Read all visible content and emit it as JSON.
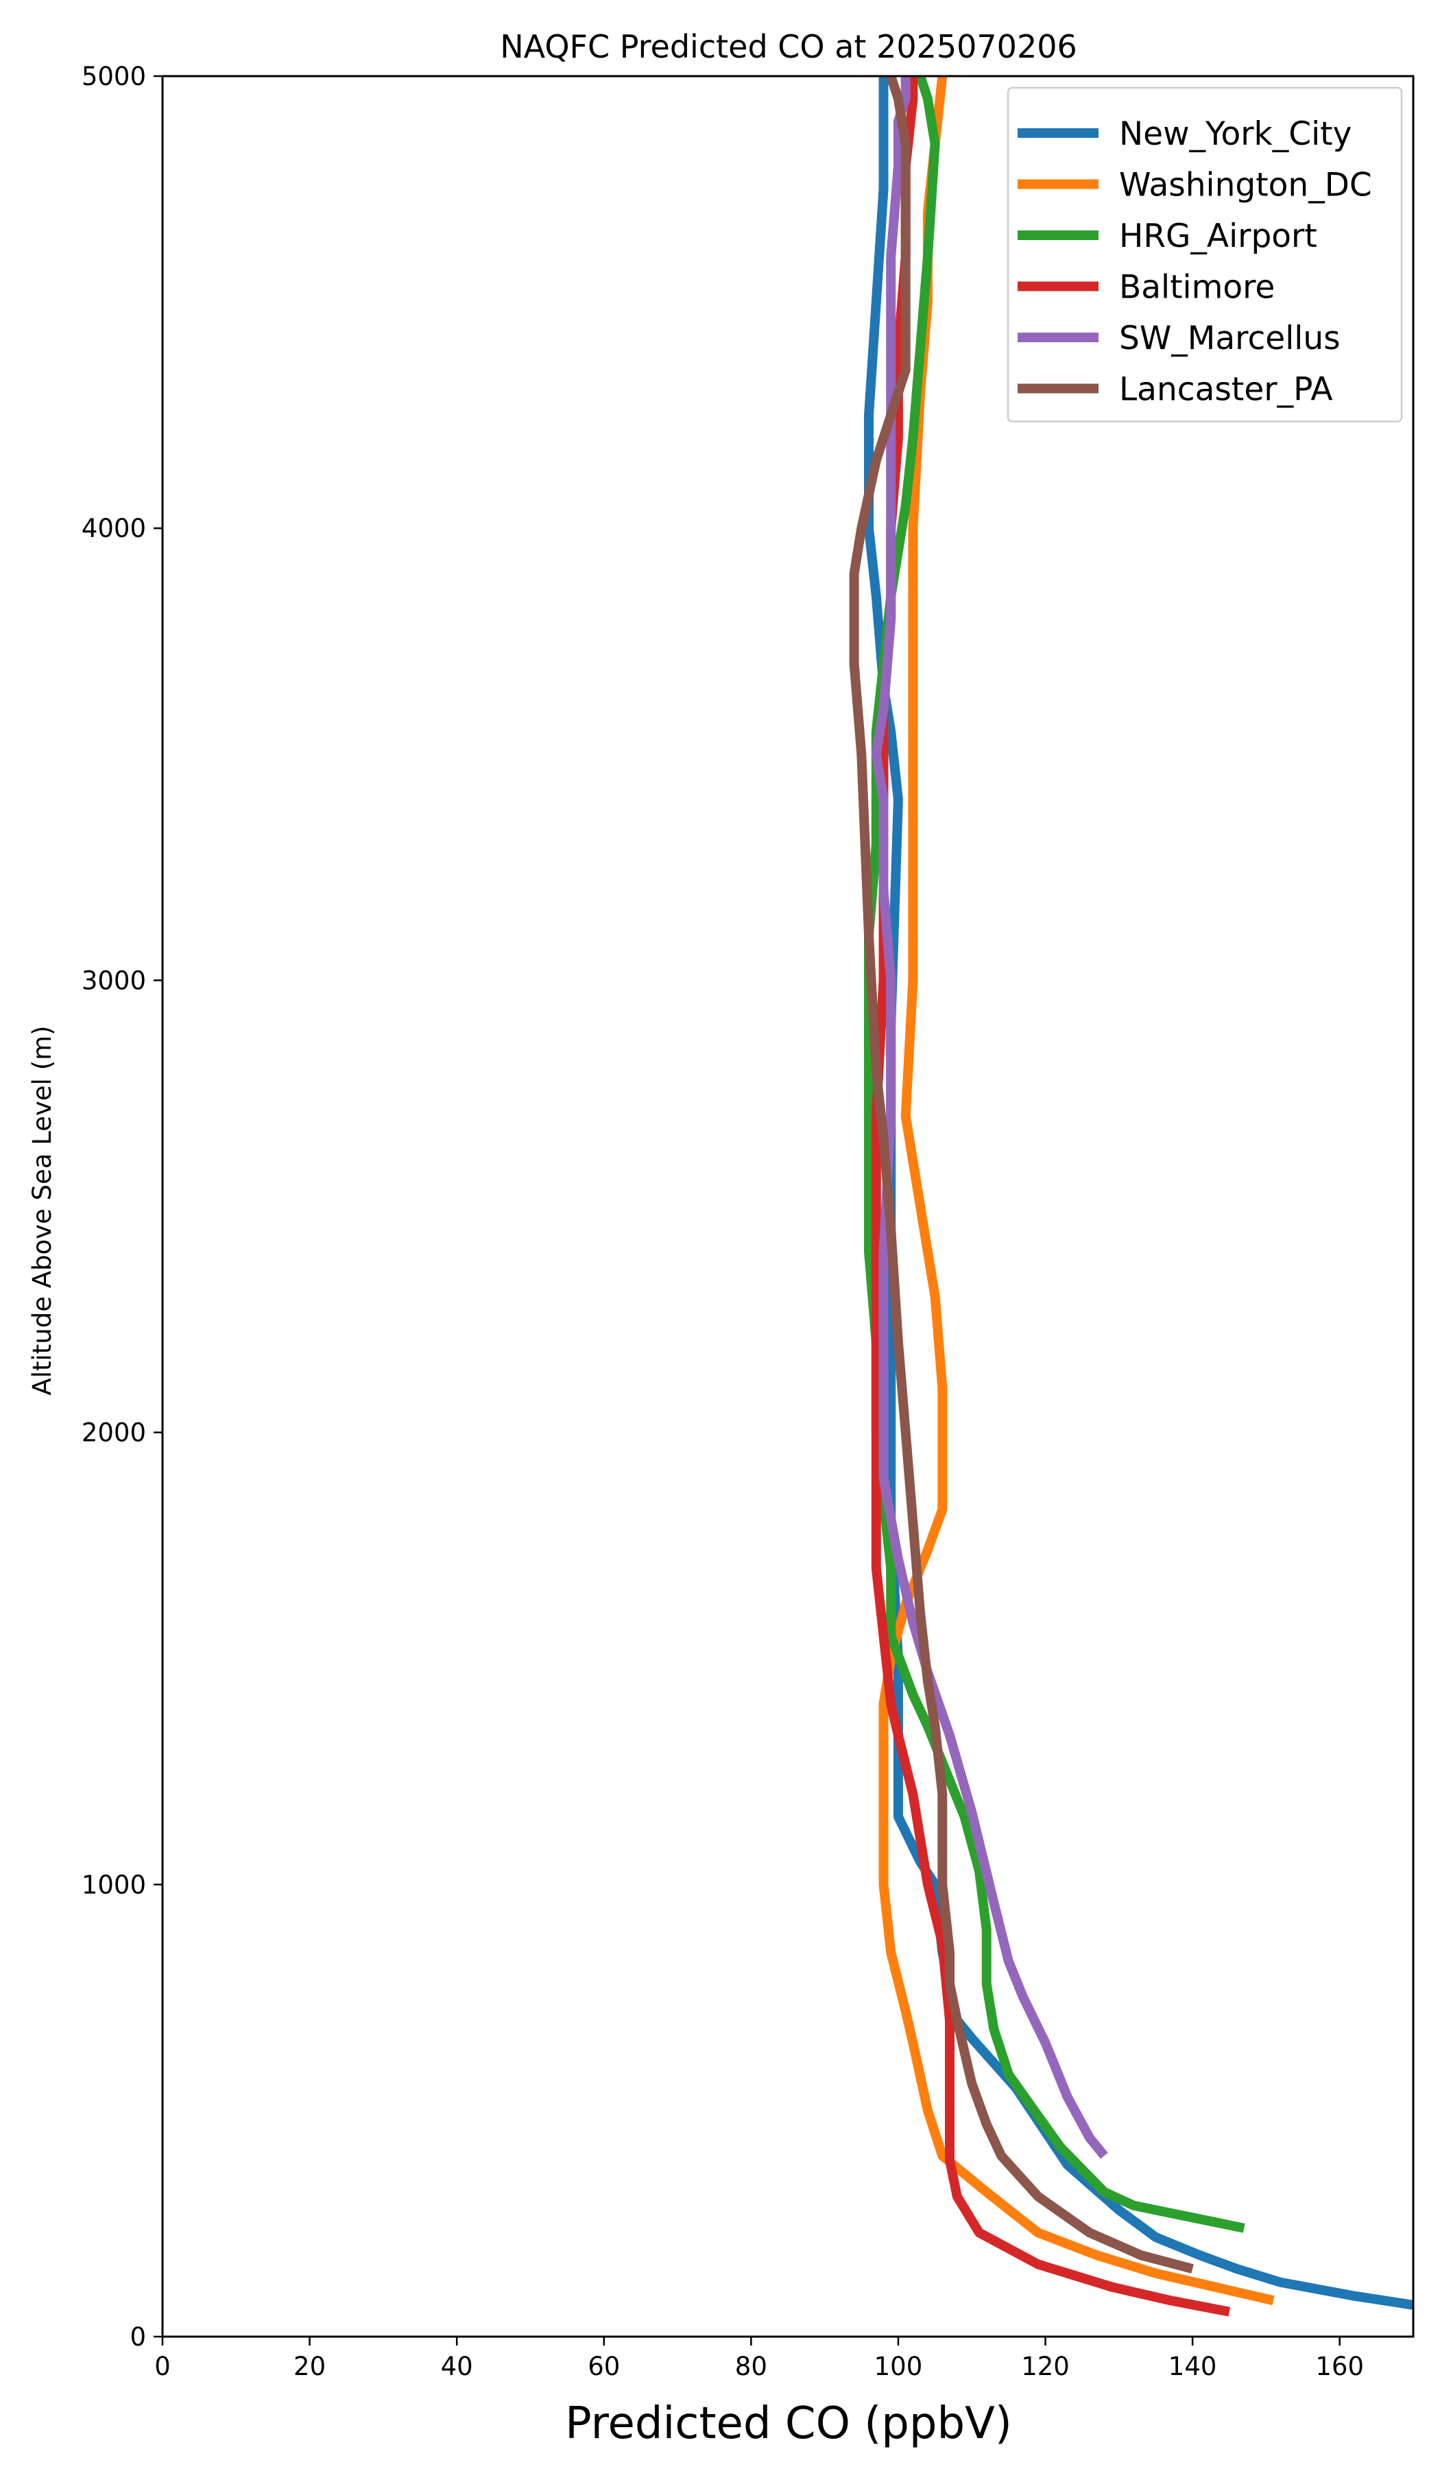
{
  "chart_data": {
    "type": "line",
    "title": "NAQFC Predicted CO at 2025070206",
    "xlabel": "Predicted CO (ppbV)",
    "ylabel": "Altitude Above Sea Level (m)",
    "xlim": [
      0,
      170
    ],
    "ylim": [
      0,
      5000
    ],
    "xticks": [
      "0",
      "20",
      "40",
      "60",
      "80",
      "100",
      "120",
      "140",
      "160"
    ],
    "yticks": [
      "0",
      "1000",
      "2000",
      "3000",
      "4000",
      "5000"
    ],
    "grid": false,
    "legend_position": "top-right",
    "series": [
      {
        "name": "New_York_City",
        "color": "#1f77b4",
        "x": [
          170,
          162,
          152,
          146,
          141,
          135,
          130,
          123,
          116,
          110,
          108,
          106,
          105,
          103,
          100,
          100,
          100,
          99,
          99,
          99,
          99,
          99,
          99,
          99,
          100,
          99,
          98,
          97,
          96,
          96,
          97,
          98,
          98,
          98
        ],
        "y": [
          70,
          90,
          120,
          150,
          180,
          220,
          280,
          380,
          550,
          660,
          700,
          850,
          1000,
          1050,
          1150,
          1200,
          1500,
          1800,
          2000,
          2200,
          2400,
          2600,
          2700,
          2900,
          3400,
          3550,
          3650,
          3850,
          4000,
          4250,
          4500,
          4750,
          4900,
          5000
        ]
      },
      {
        "name": "Washington_DC",
        "color": "#ff7f0e",
        "x": [
          151,
          143,
          135,
          127,
          119,
          112,
          106,
          104,
          102,
          101,
          99,
          98,
          98,
          98,
          99,
          101,
          104,
          106,
          106,
          105,
          103,
          101,
          102,
          102,
          102,
          102,
          102,
          102,
          103,
          104,
          104,
          105,
          106
        ],
        "y": [
          80,
          110,
          140,
          180,
          230,
          320,
          400,
          500,
          650,
          720,
          850,
          1000,
          1200,
          1400,
          1500,
          1620,
          1740,
          1830,
          2100,
          2300,
          2500,
          2700,
          3000,
          3200,
          3450,
          3600,
          3800,
          4000,
          4300,
          4500,
          4700,
          4850,
          5000
        ]
      },
      {
        "name": "HRG_Airport",
        "color": "#2ca02c",
        "x": [
          147,
          132,
          128,
          122,
          115,
          113,
          112,
          112,
          111,
          109,
          106,
          104,
          102,
          99,
          99,
          97,
          97,
          96,
          96,
          96,
          97,
          97,
          98,
          99,
          101,
          102,
          103,
          104,
          105,
          104,
          103
        ],
        "y": [
          240,
          290,
          320,
          420,
          580,
          680,
          780,
          900,
          1030,
          1150,
          1270,
          1350,
          1420,
          1550,
          1700,
          2000,
          2200,
          2400,
          2800,
          3100,
          3300,
          3550,
          3700,
          3850,
          4050,
          4200,
          4400,
          4600,
          4850,
          4950,
          5000
        ]
      },
      {
        "name": "Baltimore",
        "color": "#d62728",
        "x": [
          145,
          137,
          129,
          119,
          111,
          108,
          107,
          107,
          107,
          107,
          106,
          104,
          102,
          100,
          99,
          98,
          97,
          97,
          97,
          97,
          97,
          98,
          98,
          98,
          99,
          99,
          100,
          100,
          101,
          101,
          102,
          102
        ],
        "y": [
          55,
          80,
          110,
          160,
          230,
          310,
          390,
          500,
          600,
          700,
          870,
          1000,
          1200,
          1330,
          1400,
          1550,
          1700,
          1850,
          2100,
          2400,
          2700,
          3000,
          3300,
          3600,
          3800,
          4000,
          4200,
          4400,
          4600,
          4800,
          4950,
          5000
        ]
      },
      {
        "name": "SW_Marcellus",
        "color": "#9467bd",
        "x": [
          128,
          126,
          123,
          120,
          117,
          115,
          113,
          110,
          107,
          104,
          102,
          100,
          98,
          98,
          98,
          99,
          99,
          99,
          98,
          98,
          97,
          98,
          99,
          99,
          99,
          99,
          99,
          100,
          100,
          101,
          101
        ],
        "y": [
          400,
          440,
          530,
          650,
          750,
          830,
          960,
          1160,
          1330,
          1470,
          1580,
          1720,
          1900,
          2100,
          2400,
          2700,
          2750,
          3000,
          3200,
          3400,
          3500,
          3600,
          3800,
          4000,
          4200,
          4400,
          4600,
          4800,
          4900,
          4950,
          5000
        ]
      },
      {
        "name": "Lancaster_PA",
        "color": "#8c564b",
        "x": [
          140,
          133,
          126,
          119,
          114,
          112,
          110,
          108,
          107,
          107,
          106,
          106,
          105,
          104,
          103,
          102,
          101,
          100,
          99,
          98,
          97,
          96,
          95,
          94,
          94,
          95,
          97,
          99,
          101,
          101,
          101,
          100,
          99
        ],
        "y": [
          150,
          180,
          230,
          310,
          400,
          470,
          560,
          700,
          780,
          850,
          1000,
          1200,
          1350,
          1450,
          1600,
          1800,
          2000,
          2200,
          2450,
          2650,
          2800,
          3100,
          3500,
          3700,
          3900,
          4000,
          4150,
          4250,
          4350,
          4600,
          4850,
          4950,
          5000
        ]
      }
    ]
  }
}
